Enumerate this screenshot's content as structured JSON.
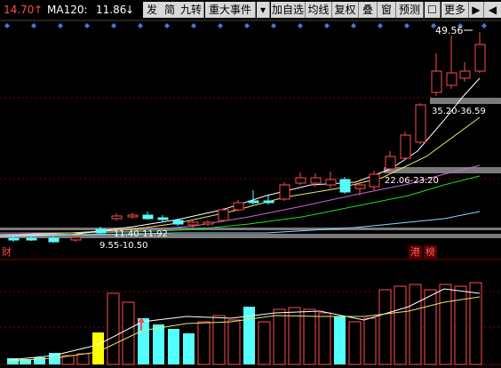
{
  "toolbar": {
    "price_value": "14.70",
    "ma_label": "MA120:",
    "ma_value": "11.86",
    "buttons": [
      "发",
      "简",
      "九转",
      "重大事件",
      "加自选",
      "均线",
      "复权",
      "叠",
      "窗",
      "预测",
      "更多"
    ]
  },
  "chart": {
    "price_labels": {
      "high": "49.56",
      "range_1": "35.20-36.59",
      "range_2": "22.06-23.20",
      "range_3": "11.40-11.92",
      "range_4": "9.55-10.50"
    },
    "event_tags": [
      "财",
      "港",
      "榜"
    ]
  },
  "colors": {
    "up": "#ff4d4d",
    "down": "#54ffff",
    "volume_yellow": "#ffff00",
    "price_ma": "#ff4d4d",
    "ma120": "#ffffff"
  }
}
